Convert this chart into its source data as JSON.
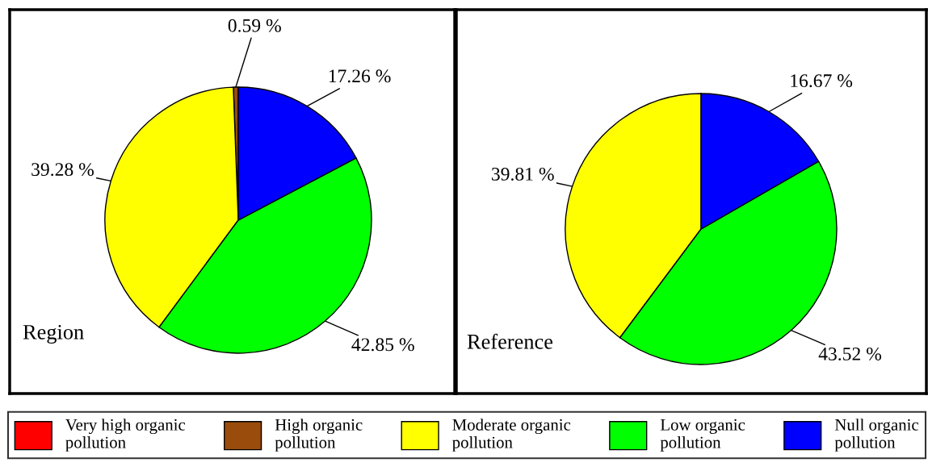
{
  "chart_data": [
    {
      "type": "pie",
      "title": "Region",
      "categories": [
        "Very high organic pollution",
        "High organic pollution",
        "Moderate organic pollution",
        "Low organic pollution",
        "Null organic pollution"
      ],
      "values": [
        0,
        0.59,
        39.28,
        42.85,
        17.26
      ],
      "colors": [
        "#ff0000",
        "#994c0c",
        "#ffff00",
        "#00ff00",
        "#0000ff"
      ],
      "value_labels": [
        null,
        "0.59 %",
        "39.28 %",
        "42.85 %",
        "17.26 %"
      ],
      "legend": "bottom"
    },
    {
      "type": "pie",
      "title": "Reference",
      "categories": [
        null,
        null,
        null,
        null,
        null
      ],
      "values": [
        0,
        0,
        39.81,
        43.52,
        16.67
      ],
      "colors": [
        "#ff0000",
        "#994c0c",
        "#ffff00",
        "#00ff00",
        "#0000ff"
      ],
      "value_labels": [
        null,
        null,
        "39.81 %",
        "43.52 %",
        "16.67 %"
      ]
    }
  ]
}
